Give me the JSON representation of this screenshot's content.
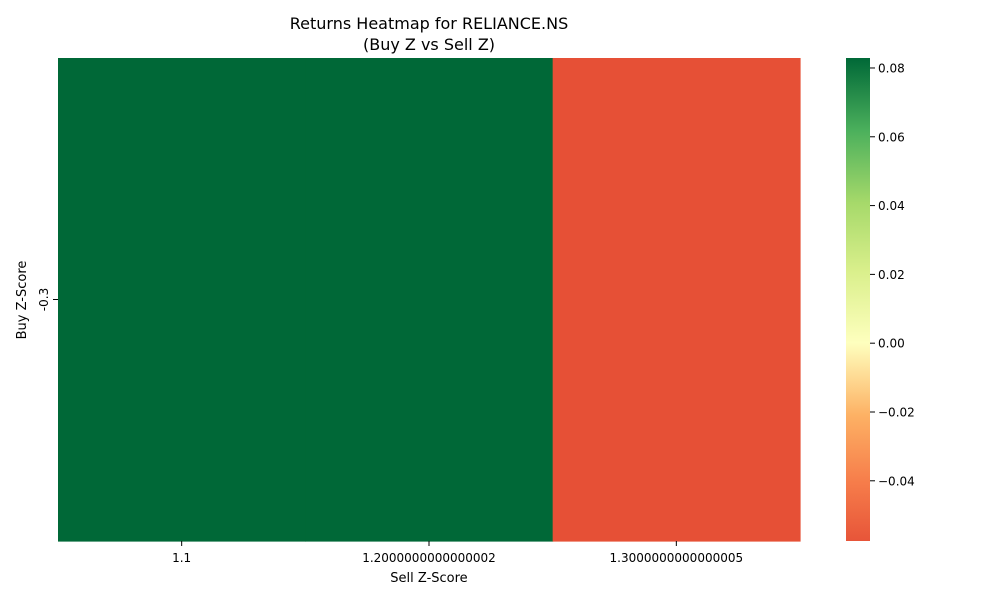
{
  "chart_data": {
    "type": "heatmap",
    "title_lines": [
      "Returns Heatmap for RELIANCE.NS",
      "(Buy Z vs Sell Z)"
    ],
    "xlabel": "Sell Z-Score",
    "ylabel": "Buy Z-Score",
    "x_categories": [
      "1.1",
      "1.2000000000000002",
      "1.3000000000000005"
    ],
    "y_categories": [
      "-0.3"
    ],
    "values": [
      [
        0.0829,
        0.0829,
        -0.0575
      ]
    ],
    "colormap": "RdYlGn",
    "colorbar": {
      "vmin": -0.0575,
      "vmax": 0.0829,
      "ticks": [
        -0.04,
        -0.02,
        0.0,
        0.02,
        0.04,
        0.06,
        0.08
      ],
      "tick_labels": [
        "−0.04",
        "−0.02",
        "0.00",
        "0.02",
        "0.04",
        "0.06",
        "0.08"
      ]
    }
  }
}
